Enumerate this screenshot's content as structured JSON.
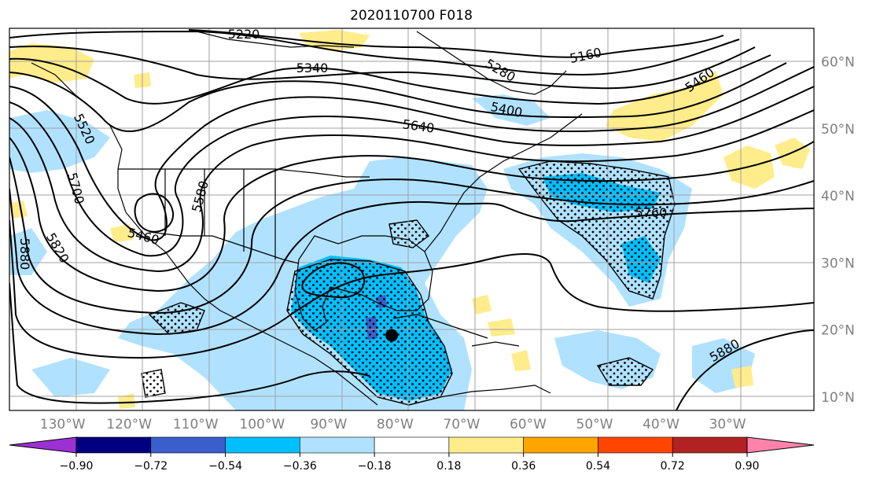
{
  "title": "2020110700 F018",
  "map": {
    "projection": "cylindrical",
    "extent": {
      "lon_min": -138,
      "lon_max": -17,
      "lat_min": 8,
      "lat_max": 65
    },
    "gridlines": true,
    "lon_labels": [
      {
        "lon": -130,
        "text": "130°W"
      },
      {
        "lon": -120,
        "text": "120°W"
      },
      {
        "lon": -110,
        "text": "110°W"
      },
      {
        "lon": -100,
        "text": "100°W"
      },
      {
        "lon": -90,
        "text": "90°W"
      },
      {
        "lon": -80,
        "text": "80°W"
      },
      {
        "lon": -70,
        "text": "70°W"
      },
      {
        "lon": -60,
        "text": "60°W"
      },
      {
        "lon": -50,
        "text": "50°W"
      },
      {
        "lon": -40,
        "text": "40°W"
      },
      {
        "lon": -30,
        "text": "30°W"
      }
    ],
    "lat_labels": [
      {
        "lat": 60,
        "text": "60°N"
      },
      {
        "lat": 50,
        "text": "50°N"
      },
      {
        "lat": 40,
        "text": "40°N"
      },
      {
        "lat": 30,
        "text": "30°N"
      },
      {
        "lat": 20,
        "text": "20°N"
      },
      {
        "lat": 10,
        "text": "10°N"
      }
    ],
    "contour_labels": [
      "5220",
      "5340",
      "5280",
      "5160",
      "5460",
      "5400",
      "5640",
      "5520",
      "5700",
      "5580",
      "5460",
      "5880",
      "5820",
      "5760",
      "5880"
    ],
    "marker": {
      "lon": -80.5,
      "lat": 19.2
    }
  },
  "colorbar": {
    "colors": [
      "#9b30d3",
      "#000080",
      "#3a5fcd",
      "#00bfff",
      "#b0e2ff",
      "#ffffff",
      "#ffec8b",
      "#ffa500",
      "#ff4500",
      "#b22222",
      "#ff82ab"
    ],
    "ticks": [
      "−0.90",
      "−0.72",
      "−0.54",
      "−0.36",
      "−0.18",
      "0.18",
      "0.36",
      "0.54",
      "0.72",
      "0.90"
    ]
  }
}
